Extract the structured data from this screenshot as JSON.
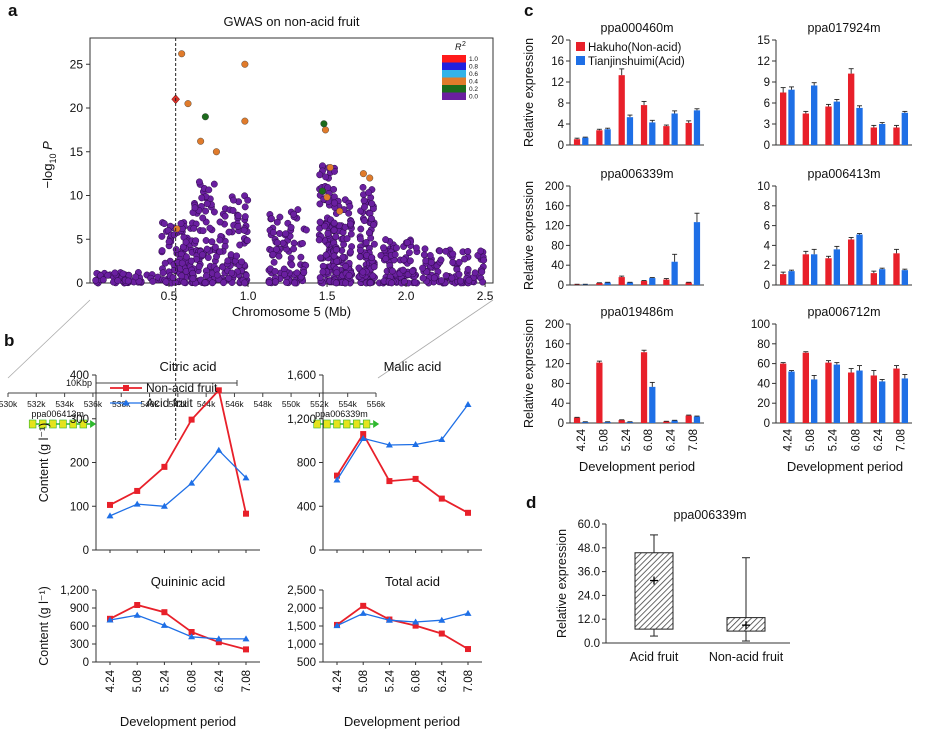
{
  "panel_labels": {
    "a": "a",
    "b": "b",
    "c": "c",
    "d": "d"
  },
  "colors": {
    "red": "#e8202a",
    "blue": "#1e6fe6",
    "purple": "#6a1fa0",
    "green": "#1c6b1c",
    "orange": "#e07b2b",
    "lead": "#d8322a"
  },
  "chart_data": [
    {
      "id": "gwas",
      "type": "scatter",
      "title": "GWAS on non-acid fruit",
      "xlabel": "Chromosome 5 (Mb)",
      "ylabel_main": "−log",
      "ylabel_sub": "10",
      "ylabel_end": " P",
      "xlim": [
        0,
        2.55
      ],
      "ylim": [
        0,
        28
      ],
      "xticks": [
        0.5,
        1.0,
        1.5,
        2.0,
        2.5
      ],
      "xtick_labels": [
        "0.5",
        "1.0",
        "1.5",
        "2.0",
        "2.5"
      ],
      "yticks": [
        0,
        5,
        10,
        15,
        20,
        25
      ],
      "lead_snp": {
        "x": 0.542,
        "y": 21
      },
      "highlighted_points": [
        {
          "x": 0.58,
          "y": 26.2,
          "r2": "orange"
        },
        {
          "x": 0.98,
          "y": 25,
          "r2": "orange"
        },
        {
          "x": 0.62,
          "y": 20.5,
          "r2": "orange"
        },
        {
          "x": 0.73,
          "y": 19,
          "r2": "green"
        },
        {
          "x": 0.98,
          "y": 18.5,
          "r2": "orange"
        },
        {
          "x": 1.49,
          "y": 17.5,
          "r2": "orange"
        },
        {
          "x": 0.7,
          "y": 16.2,
          "r2": "orange"
        },
        {
          "x": 1.48,
          "y": 18.2,
          "r2": "green"
        },
        {
          "x": 0.8,
          "y": 15,
          "r2": "orange"
        },
        {
          "x": 1.52,
          "y": 13.2,
          "r2": "orange"
        },
        {
          "x": 1.73,
          "y": 12.5,
          "r2": "orange"
        },
        {
          "x": 1.77,
          "y": 12,
          "r2": "orange"
        },
        {
          "x": 1.5,
          "y": 9.8,
          "r2": "orange"
        },
        {
          "x": 0.55,
          "y": 6.2,
          "r2": "orange"
        },
        {
          "x": 1.58,
          "y": 8.2,
          "r2": "orange"
        },
        {
          "x": 1.47,
          "y": 10.5,
          "r2": "green"
        }
      ],
      "legend": {
        "title": "R",
        "title_sup": "2",
        "levels": [
          "1.0",
          "0.8",
          "0.6",
          "0.4",
          "0.2",
          "0.0"
        ],
        "colors": [
          "#ff1a1a",
          "#2020e0",
          "#33b3e8",
          "#e07b2b",
          "#1c6b1c",
          "#6a1fa0"
        ]
      }
    },
    {
      "id": "gene_track",
      "type": "table",
      "scale_label": "10Kbp",
      "positions": [
        "530k",
        "532k",
        "534k",
        "536k",
        "538k",
        "540k",
        "542k",
        "544k",
        "546k",
        "548k",
        "550k",
        "552k",
        "554k",
        "556k"
      ],
      "genes": [
        {
          "name": "ppa006413m",
          "start": 531.5,
          "end": 535.8
        },
        {
          "name": "ppa006339m",
          "start": 551.6,
          "end": 555.8
        }
      ]
    },
    {
      "id": "citric",
      "type": "line",
      "title": "Citric acid",
      "ylabel": "Content (g l⁻¹)",
      "categories": [
        "4.24",
        "5.08",
        "5.24",
        "6.08",
        "6.24",
        "7.08"
      ],
      "ylim": [
        0,
        400
      ],
      "yticks": [
        0,
        100,
        200,
        300,
        400
      ],
      "ytick_labels": [
        "0",
        "100",
        "200",
        "300",
        "400"
      ],
      "series": [
        {
          "name": "Non-acid fruit",
          "values": [
            103,
            135,
            190,
            298,
            365,
            83
          ]
        },
        {
          "name": "Acid fruit",
          "values": [
            78,
            105,
            100,
            153,
            228,
            165
          ]
        }
      ]
    },
    {
      "id": "malic",
      "type": "line",
      "title": "Malic acid",
      "ylabel": "",
      "categories": [
        "4.24",
        "5.08",
        "5.24",
        "6.08",
        "6.24",
        "7.08"
      ],
      "ylim": [
        0,
        1600
      ],
      "yticks": [
        0,
        400,
        800,
        1200,
        1600
      ],
      "ytick_labels": [
        "0",
        "400",
        "800",
        "1,200",
        "1,600"
      ],
      "series": [
        {
          "name": "Non-acid fruit",
          "values": [
            680,
            1060,
            630,
            650,
            470,
            340
          ]
        },
        {
          "name": "Acid fruit",
          "values": [
            640,
            1020,
            960,
            965,
            1010,
            1330
          ]
        }
      ]
    },
    {
      "id": "quininic",
      "type": "line",
      "title": "Quininic acid",
      "ylabel": "Content (g l⁻¹)",
      "categories": [
        "4.24",
        "5.08",
        "5.24",
        "6.08",
        "6.24",
        "7.08"
      ],
      "ylim": [
        0,
        1200
      ],
      "yticks": [
        0,
        300,
        600,
        900,
        1200
      ],
      "ytick_labels": [
        "0",
        "300",
        "600",
        "900",
        "1,200"
      ],
      "series": [
        {
          "name": "Non-acid fruit",
          "values": [
            720,
            950,
            830,
            500,
            330,
            210
          ]
        },
        {
          "name": "Acid fruit",
          "values": [
            700,
            780,
            610,
            420,
            385,
            385
          ]
        }
      ]
    },
    {
      "id": "total",
      "type": "line",
      "title": "Total acid",
      "ylabel": "",
      "categories": [
        "4.24",
        "5.08",
        "5.24",
        "6.08",
        "6.24",
        "7.08"
      ],
      "ylim": [
        500,
        2500
      ],
      "yticks": [
        500,
        1000,
        1500,
        2000,
        2500
      ],
      "ytick_labels": [
        "500",
        "1,000",
        "1,500",
        "2,000",
        "2,500"
      ],
      "series": [
        {
          "name": "Non-acid fruit",
          "values": [
            1530,
            2060,
            1680,
            1510,
            1290,
            860
          ]
        },
        {
          "name": "Acid fruit",
          "values": [
            1510,
            1850,
            1660,
            1610,
            1660,
            1850
          ]
        }
      ]
    },
    {
      "id": "ppa000460m",
      "type": "bar",
      "title": "ppa000460m",
      "ylabel": "Relative expression",
      "categories": [
        "4.24",
        "5.08",
        "5.24",
        "6.08",
        "6.24",
        "7.08"
      ],
      "ylim": [
        0,
        20
      ],
      "yticks": [
        0,
        4,
        8,
        12,
        16,
        20
      ],
      "series": [
        {
          "name": "Hakuho(Non-acid)",
          "values": [
            1.1,
            2.8,
            13.3,
            7.6,
            3.6,
            4.2
          ],
          "errors": [
            0.2,
            0.2,
            1.2,
            0.7,
            0.2,
            0.4
          ]
        },
        {
          "name": "Tianjinshuimi(Acid)",
          "values": [
            1.4,
            3.0,
            5.3,
            4.3,
            6.0,
            6.6
          ],
          "errors": [
            0.1,
            0.2,
            0.4,
            0.4,
            0.5,
            0.3
          ]
        }
      ]
    },
    {
      "id": "ppa017924m",
      "type": "bar",
      "title": "ppa017924m",
      "ylabel": "",
      "categories": [
        "4.24",
        "5.08",
        "5.24",
        "6.08",
        "6.24",
        "7.08"
      ],
      "ylim": [
        0,
        15
      ],
      "yticks": [
        0,
        3,
        6,
        9,
        12,
        15
      ],
      "series": [
        {
          "name": "Hakuho(Non-acid)",
          "values": [
            7.5,
            4.5,
            5.5,
            10.2,
            2.5,
            2.5
          ],
          "errors": [
            0.7,
            0.3,
            0.3,
            0.7,
            0.3,
            0.3
          ]
        },
        {
          "name": "Tianjinshuimi(Acid)",
          "values": [
            7.9,
            8.5,
            6.2,
            5.3,
            3.0,
            4.6
          ],
          "errors": [
            0.4,
            0.4,
            0.3,
            0.3,
            0.2,
            0.2
          ]
        }
      ]
    },
    {
      "id": "ppa006339m",
      "type": "bar",
      "title": "ppa006339m",
      "ylabel": "Relative expression",
      "categories": [
        "4.24",
        "5.08",
        "5.24",
        "6.08",
        "6.24",
        "7.08"
      ],
      "ylim": [
        0,
        200
      ],
      "yticks": [
        0,
        40,
        80,
        120,
        160,
        200
      ],
      "series": [
        {
          "name": "Hakuho(Non-acid)",
          "values": [
            1,
            4,
            16,
            8,
            11,
            5
          ],
          "errors": [
            0.5,
            0.5,
            2,
            1,
            2,
            0.5
          ]
        },
        {
          "name": "Tianjinshuimi(Acid)",
          "values": [
            1,
            5,
            5,
            14,
            47,
            127
          ],
          "errors": [
            0.5,
            0.5,
            0.5,
            1,
            15,
            18
          ]
        }
      ]
    },
    {
      "id": "ppa006413m",
      "type": "bar",
      "title": "ppa006413m",
      "ylabel": "",
      "categories": [
        "4.24",
        "5.08",
        "5.24",
        "6.08",
        "6.24",
        "7.08"
      ],
      "ylim": [
        0,
        10
      ],
      "yticks": [
        0,
        2,
        4,
        6,
        8,
        10
      ],
      "series": [
        {
          "name": "Hakuho(Non-acid)",
          "values": [
            1.1,
            3.1,
            2.7,
            4.6,
            1.2,
            3.2
          ],
          "errors": [
            0.2,
            0.3,
            0.2,
            0.2,
            0.2,
            0.4
          ]
        },
        {
          "name": "Tianjinshuimi(Acid)",
          "values": [
            1.4,
            3.1,
            3.6,
            5.1,
            1.6,
            1.5
          ],
          "errors": [
            0.1,
            0.5,
            0.3,
            0.1,
            0.1,
            0.1
          ]
        }
      ]
    },
    {
      "id": "ppa019486m",
      "type": "bar",
      "title": "ppa019486m",
      "ylabel": "Relative expression",
      "categories": [
        "4.24",
        "5.08",
        "5.24",
        "6.08",
        "6.24",
        "7.08"
      ],
      "ylim": [
        0,
        200
      ],
      "yticks": [
        0,
        40,
        80,
        120,
        160,
        200
      ],
      "series": [
        {
          "name": "Hakuho(Non-acid)",
          "values": [
            11,
            122,
            6,
            143,
            3,
            15
          ],
          "errors": [
            0.5,
            3,
            0.5,
            4,
            0.5,
            1
          ]
        },
        {
          "name": "Tianjinshuimi(Acid)",
          "values": [
            2,
            2,
            2,
            73,
            5,
            13
          ],
          "errors": [
            0.5,
            0.5,
            0.5,
            9,
            0.5,
            1
          ]
        }
      ]
    },
    {
      "id": "ppa006712m",
      "type": "bar",
      "title": "ppa006712m",
      "ylabel": "",
      "categories": [
        "4.24",
        "5.08",
        "5.24",
        "6.08",
        "6.24",
        "7.08"
      ],
      "ylim": [
        0,
        100
      ],
      "yticks": [
        0,
        20,
        40,
        60,
        80,
        100
      ],
      "series": [
        {
          "name": "Hakuho(Non-acid)",
          "values": [
            60,
            71,
            61,
            51,
            48,
            55
          ],
          "errors": [
            1,
            1,
            2,
            4,
            5,
            3
          ]
        },
        {
          "name": "Tianjinshuimi(Acid)",
          "values": [
            52,
            44,
            59,
            53,
            42,
            45
          ],
          "errors": [
            1,
            4,
            2,
            5,
            2,
            4
          ]
        }
      ]
    },
    {
      "id": "boxplot",
      "type": "box",
      "title": "ppa006339m",
      "ylabel": "Relative expression",
      "categories": [
        "Acid fruit",
        "Non-acid fruit"
      ],
      "ylim": [
        0,
        60
      ],
      "yticks": [
        0,
        12,
        24,
        36,
        48,
        60
      ],
      "ytick_labels": [
        "0.0",
        "12.0",
        "24.0",
        "36.0",
        "48.0",
        "60.0"
      ],
      "boxes": [
        {
          "name": "Acid fruit",
          "min": 3.5,
          "q1": 7,
          "q3": 45.5,
          "max": 54.5,
          "mean": 31.5
        },
        {
          "name": "Non-acid fruit",
          "min": 1,
          "q1": 6,
          "q3": 12.8,
          "max": 43,
          "mean": 9
        }
      ]
    }
  ],
  "shared": {
    "development_xlabel": "Development period",
    "bar_legend": [
      "Hakuho(Non-acid)",
      "Tianjinshuimi(Acid)"
    ],
    "line_legend": [
      "Non-acid fruit",
      "Acid fruit"
    ]
  }
}
